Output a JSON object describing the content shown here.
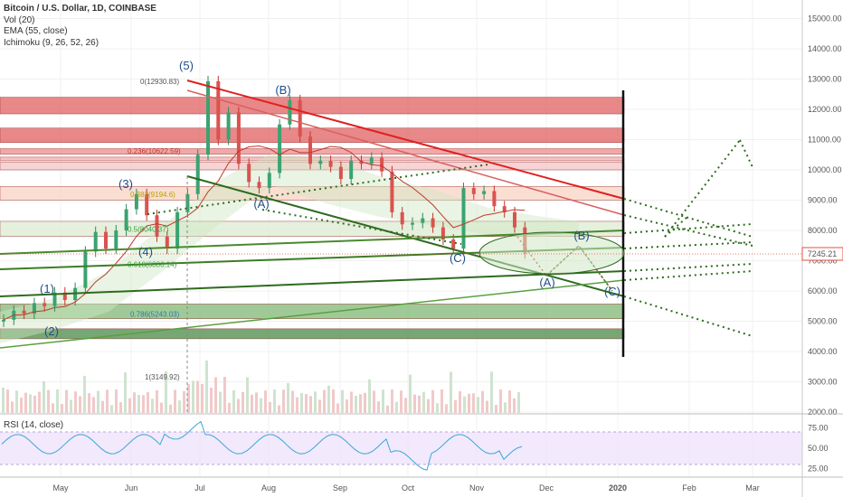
{
  "legend": {
    "symbol": "Bitcoin / U.S. Dollar, 1D, COINBASE",
    "vol": "Vol (20)",
    "ema": "EMA (55, close)",
    "ichimoku": "Ichimoku (9, 26, 52, 26)"
  },
  "rsi_label": "RSI (14, close)",
  "last_price": "7245.21",
  "chart_data": {
    "type": "candlestick",
    "x_ticks": [
      "May",
      "Jun",
      "Jul",
      "Aug",
      "Sep",
      "Oct",
      "Nov",
      "Dec",
      "2020",
      "Feb",
      "Mar"
    ],
    "y_ticks": [
      2000,
      3000,
      4000,
      5000,
      6000,
      7000,
      8000,
      9000,
      10000,
      11000,
      12000,
      13000,
      14000,
      15000
    ],
    "rsi_ticks": [
      25,
      50,
      75
    ],
    "ylim": [
      2000,
      15500
    ],
    "close_series": [
      {
        "x": 0,
        "y": 5050
      },
      {
        "x": 2,
        "y": 5350
      },
      {
        "x": 4,
        "y": 5250
      },
      {
        "x": 6,
        "y": 5600
      },
      {
        "x": 8,
        "y": 5500
      },
      {
        "x": 10,
        "y": 5950
      },
      {
        "x": 12,
        "y": 5700
      },
      {
        "x": 14,
        "y": 6100
      },
      {
        "x": 16,
        "y": 7300
      },
      {
        "x": 18,
        "y": 7950
      },
      {
        "x": 20,
        "y": 7400
      },
      {
        "x": 22,
        "y": 8000
      },
      {
        "x": 24,
        "y": 8700
      },
      {
        "x": 26,
        "y": 9200
      },
      {
        "x": 28,
        "y": 8500
      },
      {
        "x": 30,
        "y": 7800
      },
      {
        "x": 32,
        "y": 7400
      },
      {
        "x": 34,
        "y": 8600
      },
      {
        "x": 36,
        "y": 9200
      },
      {
        "x": 38,
        "y": 10500
      },
      {
        "x": 40,
        "y": 12930
      },
      {
        "x": 42,
        "y": 11000
      },
      {
        "x": 44,
        "y": 11900
      },
      {
        "x": 46,
        "y": 10200
      },
      {
        "x": 48,
        "y": 9600
      },
      {
        "x": 50,
        "y": 9400
      },
      {
        "x": 52,
        "y": 9900
      },
      {
        "x": 54,
        "y": 11500
      },
      {
        "x": 56,
        "y": 12300
      },
      {
        "x": 58,
        "y": 11100
      },
      {
        "x": 60,
        "y": 10200
      },
      {
        "x": 62,
        "y": 10300
      },
      {
        "x": 64,
        "y": 10100
      },
      {
        "x": 66,
        "y": 9700
      },
      {
        "x": 68,
        "y": 10300
      },
      {
        "x": 70,
        "y": 10200
      },
      {
        "x": 72,
        "y": 10400
      },
      {
        "x": 74,
        "y": 9950
      },
      {
        "x": 76,
        "y": 8600
      },
      {
        "x": 78,
        "y": 8200
      },
      {
        "x": 80,
        "y": 8250
      },
      {
        "x": 82,
        "y": 8400
      },
      {
        "x": 84,
        "y": 8100
      },
      {
        "x": 86,
        "y": 7700
      },
      {
        "x": 88,
        "y": 7400
      },
      {
        "x": 90,
        "y": 9400
      },
      {
        "x": 92,
        "y": 9200
      },
      {
        "x": 94,
        "y": 9300
      },
      {
        "x": 96,
        "y": 8800
      },
      {
        "x": 98,
        "y": 8600
      },
      {
        "x": 100,
        "y": 8100
      },
      {
        "x": 102,
        "y": 7245
      }
    ],
    "horizontal_zones": [
      {
        "low": 11850,
        "high": 12400,
        "color": "#e06060"
      },
      {
        "low": 10900,
        "high": 11380,
        "color": "#e06060"
      },
      {
        "low": 10520,
        "high": 10700,
        "color": "#f08a8a"
      },
      {
        "low": 10300,
        "high": 10420,
        "color": "#f4b0b0"
      },
      {
        "low": 10000,
        "high": 10250,
        "color": "#f6c4c4"
      },
      {
        "low": 9000,
        "high": 9450,
        "color": "#f8d3c3"
      },
      {
        "low": 7800,
        "high": 8300,
        "color": "#dcebd2"
      },
      {
        "low": 5080,
        "high": 5570,
        "color": "#7fb874"
      },
      {
        "low": 4420,
        "high": 4750,
        "color": "#4a8a45"
      }
    ],
    "fib_levels": [
      {
        "label": "0(12930.83)",
        "value": 12930.83
      },
      {
        "label": "0.236(10622.59)",
        "value": 10622.59
      },
      {
        "label": "0.382(9194.6)",
        "value": 9194.6
      },
      {
        "label": "0.5(8040.37)",
        "value": 8040.37
      },
      {
        "label": "0.618(6886.14)",
        "value": 6886.14
      },
      {
        "label": "0.786(5243.03)",
        "value": 5243.03
      },
      {
        "label": "1(3149.92)",
        "value": 3149.92
      }
    ],
    "wave_labels": [
      "(5)",
      "(B)",
      "(3)",
      "(A)",
      "(4)",
      "(1)",
      "(2)",
      "(C)",
      "(A)",
      "(B)",
      "(C)"
    ]
  }
}
